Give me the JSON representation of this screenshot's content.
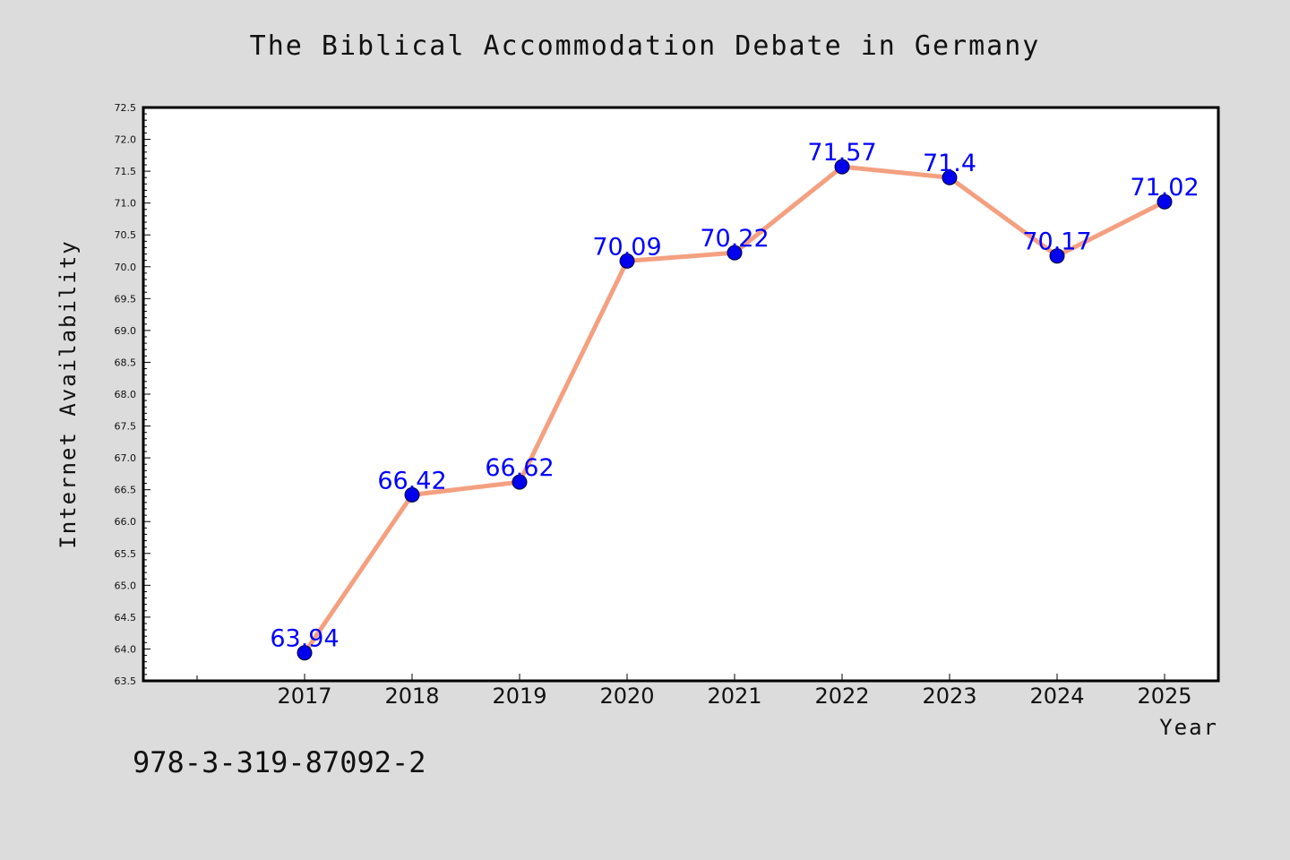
{
  "chart_data": {
    "type": "line",
    "title": "The Biblical Accommodation Debate in Germany",
    "xlabel": "Year",
    "ylabel": "Internet Availability",
    "categories": [
      "2017",
      "2018",
      "2019",
      "2020",
      "2021",
      "2022",
      "2023",
      "2024",
      "2025"
    ],
    "series": [
      {
        "values": [
          63.94,
          66.42,
          66.62,
          70.09,
          70.22,
          71.57,
          71.4,
          70.17,
          71.02
        ],
        "data_labels": [
          "63.94",
          "66.42",
          "66.62",
          "70.09",
          "70.22",
          "71.57",
          "71.4",
          "70.17",
          "71.02"
        ]
      }
    ],
    "ylim": [
      63.5,
      72.5
    ],
    "yticks": [
      "63.5",
      "64.0",
      "64.5",
      "65.0",
      "65.5",
      "66.0",
      "66.5",
      "67.0",
      "67.5",
      "68.0",
      "68.5",
      "69.0",
      "69.5",
      "70.0",
      "70.5",
      "71.0",
      "71.5",
      "72.0",
      "72.5"
    ],
    "grid": false,
    "legend": "none",
    "colors": {
      "line": "#f4a080",
      "marker": "#0000ee",
      "data_label": "#0000ff",
      "background": "#dcdcdc",
      "plot_area": "#ffffff"
    }
  },
  "footer": {
    "isbn": "978-3-319-87092-2"
  }
}
